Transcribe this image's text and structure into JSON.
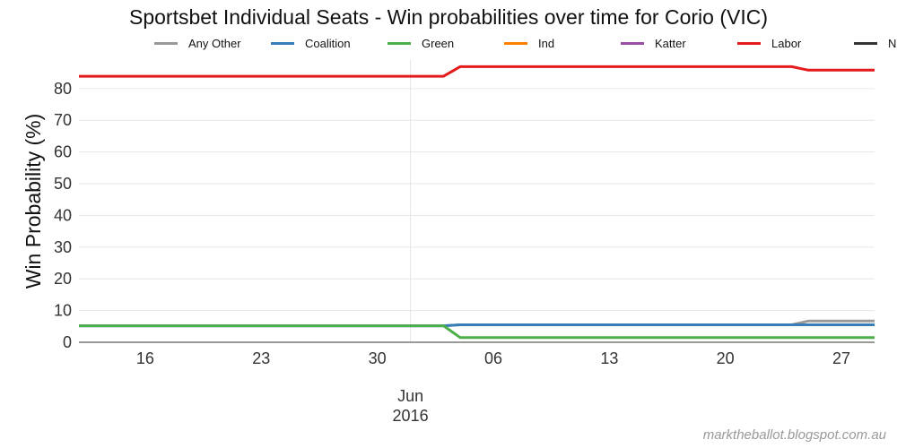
{
  "chart_data": {
    "type": "line",
    "title": "Sportsbet Individual Seats - Win probabilities over time for Corio (VIC)",
    "ylabel": "Win Probability (%)",
    "xlabel": "",
    "ylim": [
      0,
      89
    ],
    "xlim": [
      "2016-05-12",
      "2016-06-29"
    ],
    "yticks": [
      0,
      10,
      20,
      30,
      40,
      50,
      60,
      70,
      80
    ],
    "xticks": [
      {
        "date": "2016-05-16",
        "label": "16"
      },
      {
        "date": "2016-05-23",
        "label": "23"
      },
      {
        "date": "2016-05-30",
        "label": "30"
      },
      {
        "date": "2016-06-06",
        "label": "06"
      },
      {
        "date": "2016-06-13",
        "label": "13"
      },
      {
        "date": "2016-06-20",
        "label": "20"
      },
      {
        "date": "2016-06-27",
        "label": "27"
      }
    ],
    "month_marker": {
      "date": "2016-06-01",
      "label_line1": "Jun",
      "label_line2": "2016"
    },
    "grid": true,
    "legend_position": "top",
    "series": [
      {
        "name": "Any Other",
        "color": "#999999",
        "points": [
          [
            "2016-05-12",
            5.2
          ],
          [
            "2016-06-03",
            5.2
          ],
          [
            "2016-06-04",
            5.5
          ],
          [
            "2016-06-24",
            5.5
          ],
          [
            "2016-06-25",
            6.7
          ],
          [
            "2016-06-29",
            6.7
          ]
        ]
      },
      {
        "name": "Coalition",
        "color": "#377eb8",
        "points": [
          [
            "2016-05-12",
            5.2
          ],
          [
            "2016-06-03",
            5.2
          ],
          [
            "2016-06-04",
            5.5
          ],
          [
            "2016-06-29",
            5.5
          ]
        ]
      },
      {
        "name": "Green",
        "color": "#4daf4a",
        "points": [
          [
            "2016-05-12",
            5.2
          ],
          [
            "2016-06-03",
            5.2
          ],
          [
            "2016-06-04",
            1.5
          ],
          [
            "2016-06-29",
            1.5
          ]
        ]
      },
      {
        "name": "Ind",
        "color": "#ff7f00",
        "points": []
      },
      {
        "name": "Katter",
        "color": "#984ea3",
        "points": []
      },
      {
        "name": "Labor",
        "color": "#e41a1c",
        "points": [
          [
            "2016-05-12",
            83.9
          ],
          [
            "2016-06-03",
            83.9
          ],
          [
            "2016-06-04",
            86.9
          ],
          [
            "2016-06-24",
            86.9
          ],
          [
            "2016-06-25",
            85.8
          ],
          [
            "2016-06-29",
            85.8
          ]
        ]
      },
      {
        "name": "NXT",
        "color": "#333333",
        "points": []
      }
    ]
  },
  "watermark": "marktheballot.blogspot.com.au"
}
